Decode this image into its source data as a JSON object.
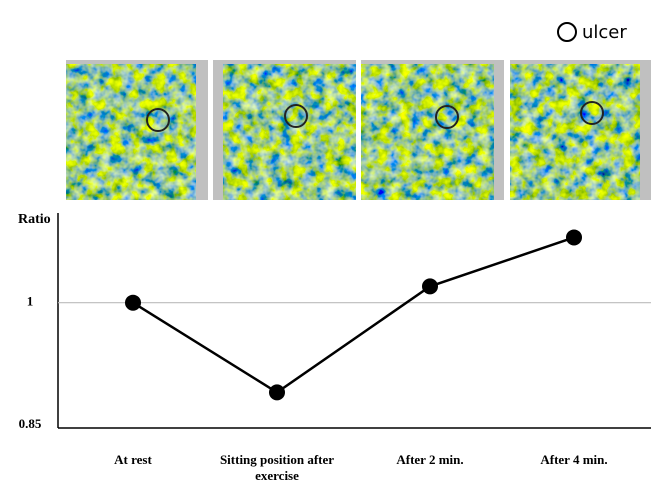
{
  "chart_data": {
    "type": "line",
    "annotation": "ulcer",
    "y_label": "Ratio",
    "categories": [
      "At rest",
      "Sitting position after exercise",
      "After 2 min.",
      "After 4 min."
    ],
    "values": [
      1.0,
      0.89,
      1.02,
      1.08
    ],
    "color": "#000000",
    "ylim": [
      0.85,
      1.11
    ],
    "yticks": [
      0.85,
      1
    ],
    "grid": true
  }
}
